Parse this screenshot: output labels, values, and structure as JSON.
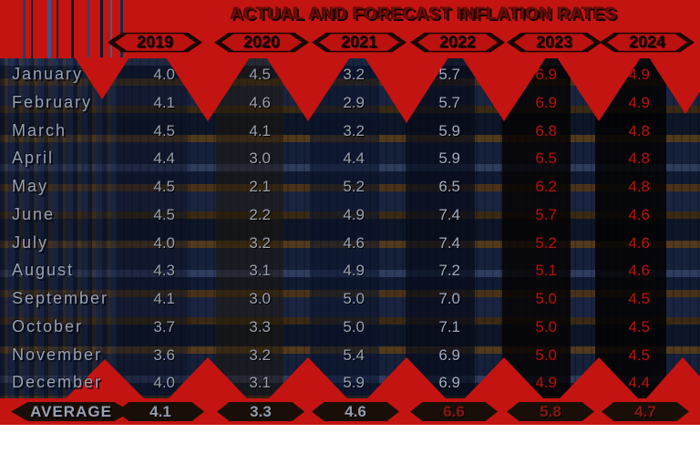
{
  "title": "ACTUAL AND FORECAST INFLATION RATES",
  "average_label": "AVERAGE",
  "years": [
    "2019",
    "2020",
    "2021",
    "2022",
    "2023",
    "2024"
  ],
  "chart_data": {
    "type": "table",
    "title": "ACTUAL AND FORECAST INFLATION RATES",
    "columns": [
      "2019",
      "2020",
      "2021",
      "2022",
      "2023",
      "2024"
    ],
    "rows": [
      {
        "label": "January",
        "values": [
          "4.0",
          "4.5",
          "3.2",
          "5.7",
          "6.9",
          "4.9"
        ]
      },
      {
        "label": "February",
        "values": [
          "4.1",
          "4.6",
          "2.9",
          "5.7",
          "6.9",
          "4.9"
        ]
      },
      {
        "label": "March",
        "values": [
          "4.5",
          "4.1",
          "3.2",
          "5.9",
          "6.8",
          "4.8"
        ]
      },
      {
        "label": "April",
        "values": [
          "4.4",
          "3.0",
          "4.4",
          "5.9",
          "6.5",
          "4.8"
        ]
      },
      {
        "label": "May",
        "values": [
          "4.5",
          "2.1",
          "5.2",
          "6.5",
          "6.2",
          "4.8"
        ]
      },
      {
        "label": "June",
        "values": [
          "4.5",
          "2.2",
          "4.9",
          "7.4",
          "5.7",
          "4.6"
        ]
      },
      {
        "label": "July",
        "values": [
          "4.0",
          "3.2",
          "4.6",
          "7.4",
          "5.2",
          "4.6"
        ]
      },
      {
        "label": "August",
        "values": [
          "4.3",
          "3.1",
          "4.9",
          "7.2",
          "5.1",
          "4.6"
        ]
      },
      {
        "label": "September",
        "values": [
          "4.1",
          "3.0",
          "5.0",
          "7.0",
          "5.0",
          "4.5"
        ]
      },
      {
        "label": "October",
        "values": [
          "3.7",
          "3.3",
          "5.0",
          "7.1",
          "5.0",
          "4.5"
        ]
      },
      {
        "label": "November",
        "values": [
          "3.6",
          "3.2",
          "5.4",
          "6.9",
          "5.0",
          "4.5"
        ]
      },
      {
        "label": "December",
        "values": [
          "4.0",
          "3.1",
          "5.9",
          "6.9",
          "4.9",
          "4.4"
        ]
      }
    ],
    "averages": [
      "4.1",
      "3.3",
      "4.6",
      "6.6",
      "5.8",
      "4.7"
    ],
    "layout_hints": {
      "grid": "off",
      "legend": "none",
      "value_range": [
        2.1,
        7.4
      ]
    }
  },
  "colors": {
    "background_red": "#c31412",
    "title_maroon": "#6e0c06",
    "silver_text": "#99a2b4",
    "red_value_text": "#b01410",
    "dark_band": "#0d1628",
    "brown_stripe": "#4a331a"
  }
}
